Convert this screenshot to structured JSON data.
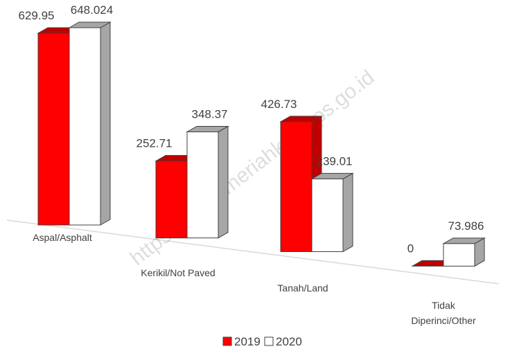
{
  "chart_data": {
    "type": "bar3d",
    "categories": [
      "Aspal/Asphalt",
      "Kerikil/Not Paved",
      "Tanah/Land",
      "Tidak Diperinci/Other"
    ],
    "series": [
      {
        "name": "2019",
        "color": "#ff0000",
        "values": [
          629.95,
          252.71,
          426.73,
          0
        ]
      },
      {
        "name": "2020",
        "color": "#ffffff",
        "values": [
          648.024,
          348.37,
          239.01,
          73.986
        ]
      }
    ],
    "legend": "bottom",
    "watermark": "https://benermeriahkab.bps.go.id"
  }
}
